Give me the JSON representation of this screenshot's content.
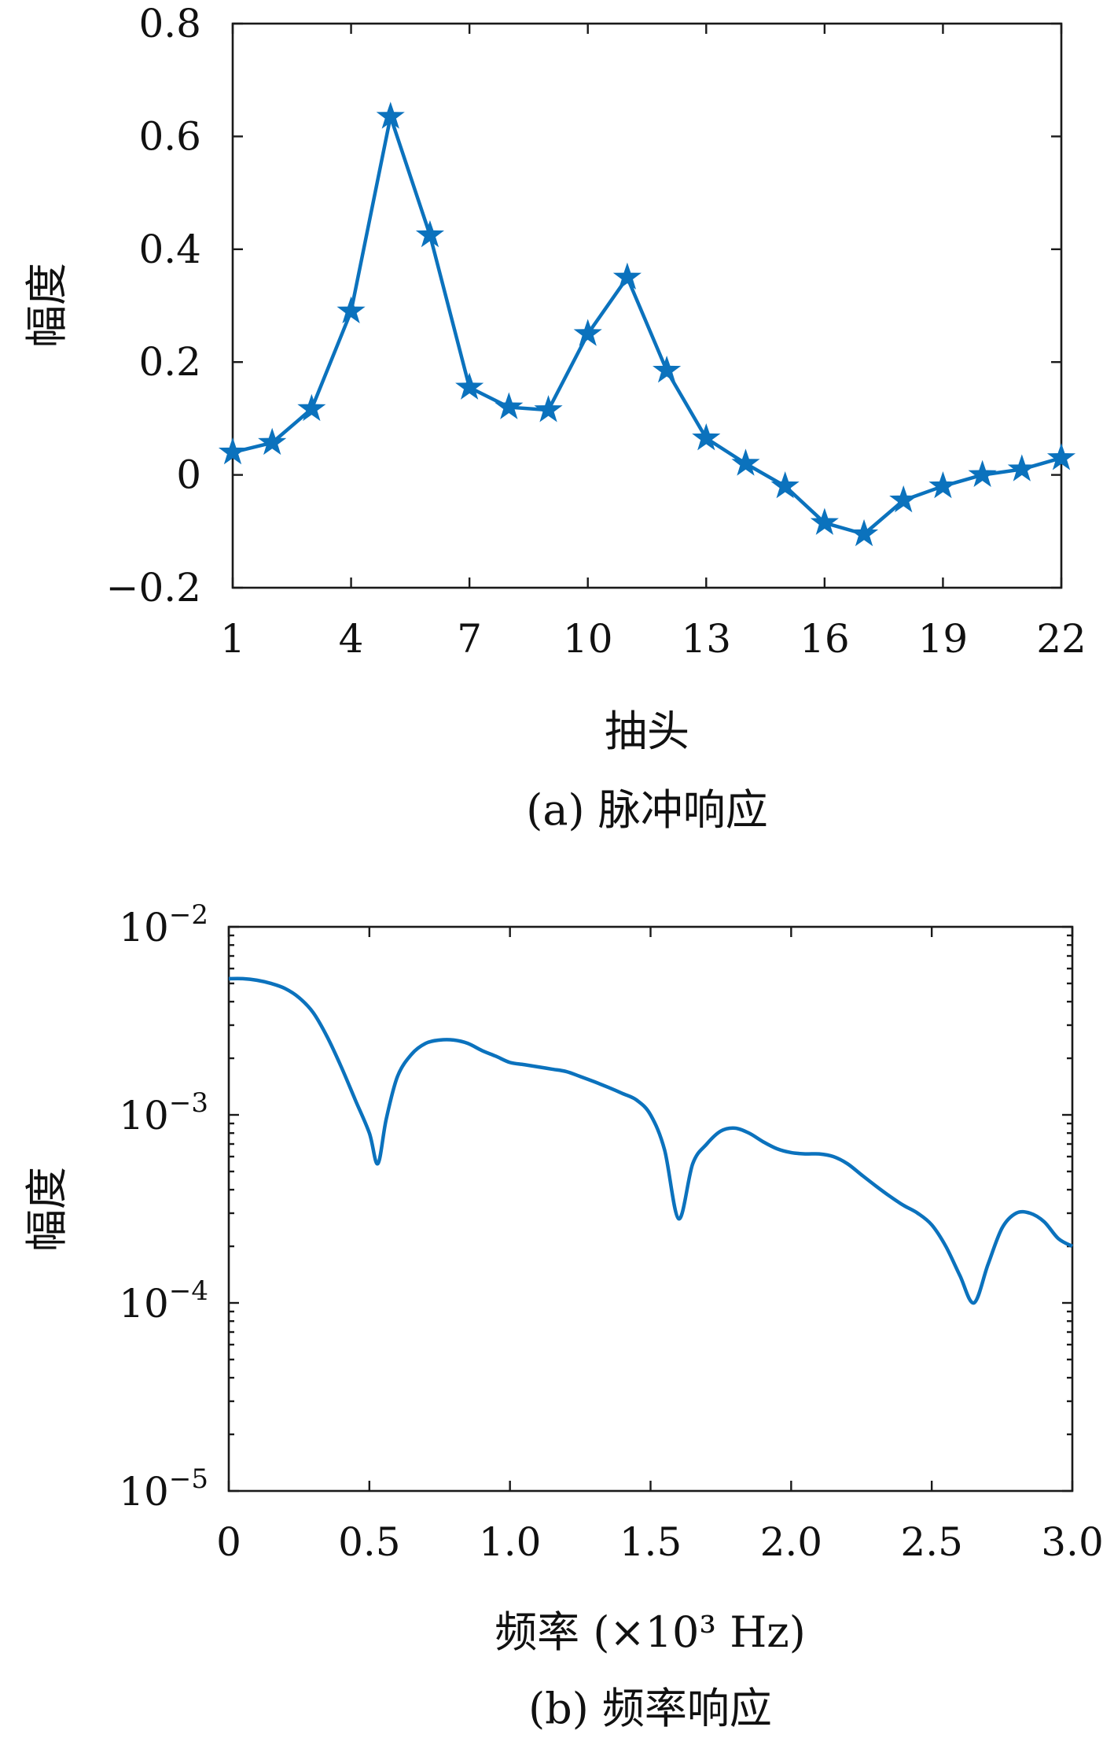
{
  "colors": {
    "series": "#0b72bd",
    "axes": "#1a1a1a",
    "text": "#111111"
  },
  "chart_data": [
    {
      "type": "line",
      "marker": "star",
      "title": "",
      "xlabel": "抽头",
      "ylabel": "幅度",
      "caption": "(a) 脉冲响应",
      "xlim": [
        1,
        22
      ],
      "ylim": [
        -0.2,
        0.8
      ],
      "xticks": [
        1,
        4,
        7,
        10,
        13,
        16,
        19,
        22
      ],
      "xtick_labels": [
        "1",
        "4",
        "7",
        "10",
        "13",
        "16",
        "19",
        "22"
      ],
      "yticks": [
        -0.2,
        0,
        0.2,
        0.4,
        0.6,
        0.8
      ],
      "ytick_labels": [
        "−0.2",
        "0",
        "0.2",
        "0.4",
        "0.6",
        "0.8"
      ],
      "grid": false,
      "legend": false,
      "series": [
        {
          "x": [
            1,
            2,
            3,
            4,
            5,
            6,
            7,
            8,
            9,
            10,
            11,
            12,
            13,
            14,
            15,
            16,
            17,
            18,
            19,
            20,
            21,
            22
          ],
          "y": [
            0.04,
            0.057,
            0.117,
            0.29,
            0.635,
            0.425,
            0.155,
            0.12,
            0.115,
            0.25,
            0.35,
            0.185,
            0.065,
            0.02,
            -0.02,
            -0.085,
            -0.105,
            -0.045,
            -0.02,
            0.0,
            0.01,
            0.03
          ]
        }
      ]
    },
    {
      "type": "line",
      "title": "",
      "xlabel": "频率 (×10³ Hz)",
      "ylabel": "幅度",
      "caption": "(b) 频率响应",
      "xlim": [
        0,
        3.0
      ],
      "ylim": [
        1e-05,
        0.01
      ],
      "yscale": "log",
      "xticks": [
        0,
        0.5,
        1.0,
        1.5,
        2.0,
        2.5,
        3.0
      ],
      "xtick_labels": [
        "0",
        "0.5",
        "1.0",
        "1.5",
        "2.0",
        "2.5",
        "3.0"
      ],
      "yticks": [
        1e-05,
        0.0001,
        0.001,
        0.01
      ],
      "ytick_base": [
        "10",
        "10",
        "10",
        "10"
      ],
      "ytick_exp": [
        "−5",
        "−4",
        "−3",
        "−2"
      ],
      "grid": false,
      "legend": false,
      "series": [
        {
          "x": [
            0,
            0.05,
            0.1,
            0.15,
            0.2,
            0.25,
            0.3,
            0.35,
            0.4,
            0.45,
            0.5,
            0.53,
            0.56,
            0.6,
            0.65,
            0.7,
            0.75,
            0.8,
            0.85,
            0.9,
            0.95,
            1.0,
            1.05,
            1.1,
            1.15,
            1.2,
            1.25,
            1.3,
            1.35,
            1.4,
            1.45,
            1.5,
            1.55,
            1.6,
            1.65,
            1.7,
            1.75,
            1.8,
            1.85,
            1.9,
            1.95,
            2.0,
            2.05,
            2.1,
            2.15,
            2.2,
            2.25,
            2.3,
            2.35,
            2.4,
            2.45,
            2.5,
            2.55,
            2.6,
            2.65,
            2.7,
            2.75,
            2.8,
            2.85,
            2.9,
            2.95,
            3.0
          ],
          "y": [
            0.0053,
            0.0053,
            0.0052,
            0.005,
            0.0047,
            0.0042,
            0.0035,
            0.0026,
            0.0018,
            0.0012,
            0.0008,
            0.00055,
            0.00095,
            0.0016,
            0.0021,
            0.0024,
            0.0025,
            0.0025,
            0.0024,
            0.0022,
            0.00205,
            0.0019,
            0.00185,
            0.0018,
            0.00175,
            0.0017,
            0.0016,
            0.0015,
            0.0014,
            0.0013,
            0.0012,
            0.001,
            0.00065,
            0.00028,
            0.00055,
            0.0007,
            0.00082,
            0.00085,
            0.0008,
            0.00072,
            0.00066,
            0.00063,
            0.00062,
            0.00062,
            0.0006,
            0.00055,
            0.00048,
            0.00042,
            0.00037,
            0.00033,
            0.0003,
            0.00026,
            0.0002,
            0.00014,
            0.0001,
            0.00016,
            0.00025,
            0.0003,
            0.0003,
            0.00027,
            0.00022,
            0.0002
          ]
        }
      ]
    }
  ]
}
